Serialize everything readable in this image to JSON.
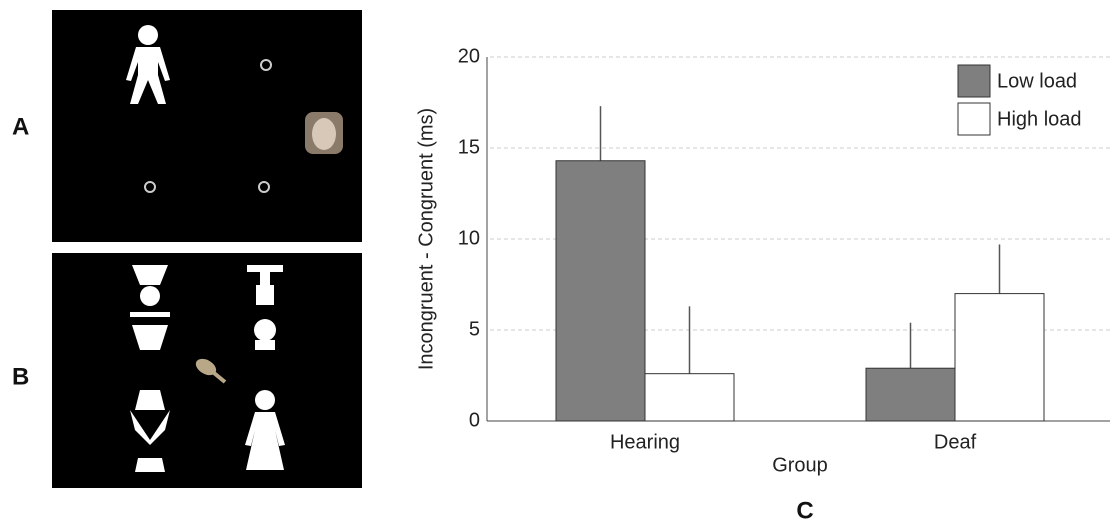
{
  "panels": {
    "a_label": "A",
    "b_label": "B",
    "c_label": "C"
  },
  "chart_data": {
    "type": "bar",
    "ylabel": "Incongruent - Congruent (ms)",
    "xlabel": "Group",
    "categories": [
      "Hearing",
      "Deaf"
    ],
    "series": [
      {
        "name": "Low load",
        "color": "#7f7f7f",
        "values": [
          14.3,
          2.9
        ],
        "errors": [
          3.0,
          2.5
        ]
      },
      {
        "name": "High load",
        "color": "#ffffff",
        "values": [
          2.6,
          7.0
        ],
        "errors": [
          3.7,
          2.7
        ]
      }
    ],
    "ylim": [
      0,
      20
    ],
    "yticks": [
      0,
      5,
      10,
      15,
      20
    ],
    "grid": true,
    "legend": "top-right"
  }
}
